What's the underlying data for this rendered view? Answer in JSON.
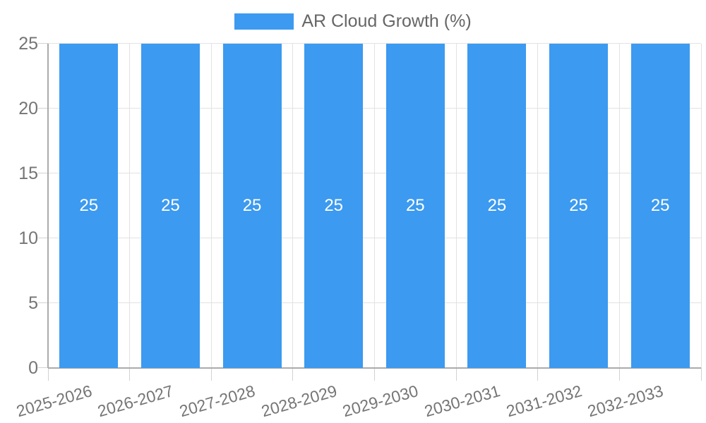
{
  "legend": {
    "label": "AR Cloud Growth (%)"
  },
  "chart_data": {
    "type": "bar",
    "title": "",
    "xlabel": "",
    "ylabel": "",
    "series_label": "AR Cloud Growth (%)",
    "categories": [
      "2025-2026",
      "2026-2027",
      "2027-2028",
      "2028-2029",
      "2029-2030",
      "2030-2031",
      "2031-2032",
      "2032-2033"
    ],
    "values": [
      25,
      25,
      25,
      25,
      25,
      25,
      25,
      25
    ],
    "y_ticks": [
      0,
      5,
      10,
      15,
      20,
      25
    ],
    "ylim": [
      0,
      25
    ],
    "grid": true,
    "legend_position": "top",
    "colors": {
      "bar": "#3C9AF0",
      "grid_line": "#E2E2E2",
      "axis_line": "#ABABAB",
      "tick_mark": "#D2D2D2",
      "tick_text": "#757575",
      "legend_text": "#666666",
      "data_label_text": "#FFFFFF",
      "background": "#FFFFFF"
    }
  }
}
